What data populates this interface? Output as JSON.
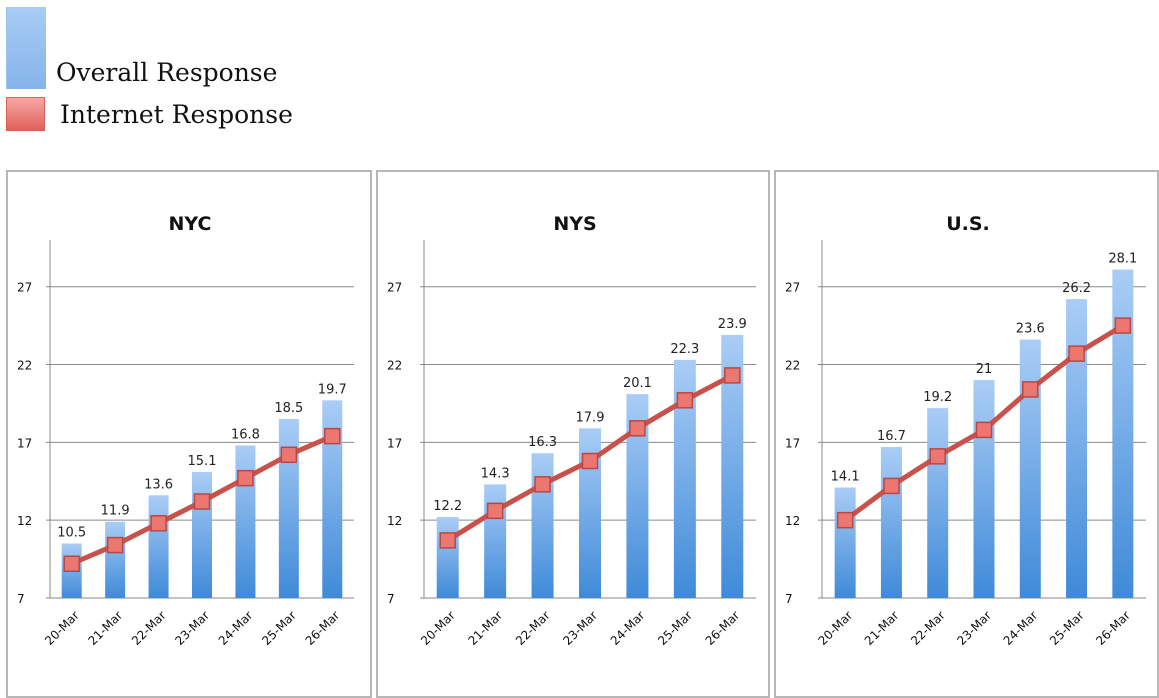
{
  "legend": {
    "overall": "Overall Response",
    "internet": "Internet Response"
  },
  "colors": {
    "bar_top": "#aacdf6",
    "bar_bottom": "#3f8ad8",
    "line": "#c9514b",
    "marker_fill": "#ec7670",
    "marker_stroke": "#b94843",
    "grid": "#8a8a8a"
  },
  "chart_data": [
    {
      "type": "bar",
      "title": "NYC",
      "categories": [
        "20-Mar",
        "21-Mar",
        "22-Mar",
        "23-Mar",
        "24-Mar",
        "25-Mar",
        "26-Mar"
      ],
      "series": [
        {
          "name": "Overall Response",
          "type": "bar",
          "values": [
            10.5,
            11.9,
            13.6,
            15.1,
            16.8,
            18.5,
            19.7
          ]
        },
        {
          "name": "Internet Response",
          "type": "line",
          "values": [
            9.2,
            10.4,
            11.8,
            13.2,
            14.7,
            16.2,
            17.4
          ]
        }
      ],
      "bar_labels": [
        "10.5",
        "11.9",
        "13.6",
        "15.1",
        "16.8",
        "18.5",
        "19.7"
      ],
      "yticks": [
        7,
        12,
        17,
        22,
        27
      ],
      "ylim": [
        7,
        30
      ],
      "grid": true
    },
    {
      "type": "bar",
      "title": "NYS",
      "categories": [
        "20-Mar",
        "21-Mar",
        "22-Mar",
        "23-Mar",
        "24-Mar",
        "25-Mar",
        "26-Mar"
      ],
      "series": [
        {
          "name": "Overall Response",
          "type": "bar",
          "values": [
            12.2,
            14.3,
            16.3,
            17.9,
            20.1,
            22.3,
            23.9
          ]
        },
        {
          "name": "Internet Response",
          "type": "line",
          "values": [
            10.7,
            12.6,
            14.3,
            15.8,
            17.9,
            19.7,
            21.3
          ]
        }
      ],
      "bar_labels": [
        "12.2",
        "14.3",
        "16.3",
        "17.9",
        "20.1",
        "22.3",
        "23.9"
      ],
      "yticks": [
        7,
        12,
        17,
        22,
        27
      ],
      "ylim": [
        7,
        30
      ],
      "grid": true
    },
    {
      "type": "bar",
      "title": "U.S.",
      "categories": [
        "20-Mar",
        "21-Mar",
        "22-Mar",
        "23-Mar",
        "24-Mar",
        "25-Mar",
        "26-Mar"
      ],
      "series": [
        {
          "name": "Overall Response",
          "type": "bar",
          "values": [
            14.1,
            16.7,
            19.2,
            21,
            23.6,
            26.2,
            28.1
          ]
        },
        {
          "name": "Internet Response",
          "type": "line",
          "values": [
            12.0,
            14.2,
            16.1,
            17.8,
            20.4,
            22.7,
            24.5
          ]
        }
      ],
      "bar_labels": [
        "14.1",
        "16.7",
        "19.2",
        "21",
        "23.6",
        "26.2",
        "28.1"
      ],
      "yticks": [
        7,
        12,
        17,
        22,
        27
      ],
      "ylim": [
        7,
        30
      ],
      "grid": true
    }
  ]
}
